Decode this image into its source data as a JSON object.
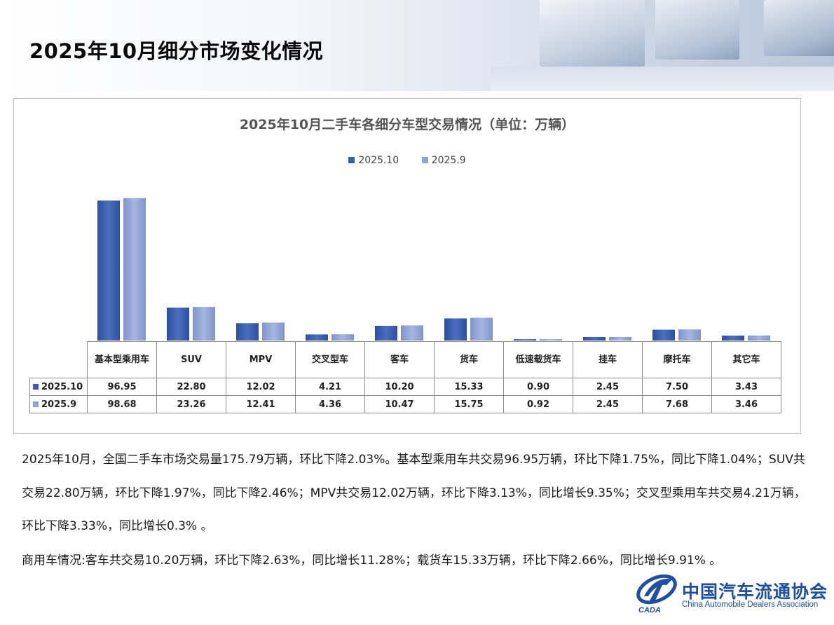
{
  "page": {
    "title": "2025年10月细分市场变化情况"
  },
  "colors": {
    "series_2025_10": "#3a5faf",
    "series_2025_9": "#8fa3d6",
    "logo_blue": "#1f4fa0"
  },
  "chart_data": {
    "type": "bar",
    "title": "2025年10月二手车各细分车型交易情况（单位：万辆）",
    "categories": [
      "基本型乘用车",
      "SUV",
      "MPV",
      "交叉型车",
      "客车",
      "货车",
      "低速载货车",
      "挂车",
      "摩托车",
      "其它车"
    ],
    "series": [
      {
        "name": "2025.10",
        "values": [
          96.95,
          22.8,
          12.02,
          4.21,
          10.2,
          15.33,
          0.9,
          2.45,
          7.5,
          3.43
        ]
      },
      {
        "name": "2025.9",
        "values": [
          98.68,
          23.26,
          12.41,
          4.36,
          10.47,
          15.75,
          0.92,
          2.45,
          7.68,
          3.46
        ]
      }
    ],
    "value_labels": [
      [
        "96.95",
        "22.80",
        "12.02",
        "4.21",
        "10.20",
        "15.33",
        "0.90",
        "2.45",
        "7.50",
        "3.43"
      ],
      [
        "98.68",
        "23.26",
        "12.41",
        "4.36",
        "10.47",
        "15.75",
        "0.92",
        "2.45",
        "7.68",
        "3.46"
      ]
    ],
    "legend_position": "top-center",
    "data_table": true,
    "grid": false
  },
  "text": {
    "para1": "2025年10月，全国二手车市场交易量175.79万辆，环比下降2.03%。基本型乘用车共交易96.95万辆，环比下降1.75%，同比下降1.04%；SUV共交易22.80万辆，环比下降1.97%，同比下降2.46%；MPV共交易12.02万辆，环比下降3.13%，同比增长9.35%；交叉型乘用车共交易4.21万辆，环比下降3.33%，同比增长0.3% 。",
    "para2": "商用车情况:客车共交易10.20万辆，环比下降2.63%，同比增长11.28%；载货车15.33万辆，环比下降2.66%，同比增长9.91% 。"
  },
  "logo": {
    "name_cn": "中国汽车流通协会",
    "name_en": "China Automobile Dealers Association",
    "abbr": "CADA",
    "icon": "cada-logo-icon"
  }
}
